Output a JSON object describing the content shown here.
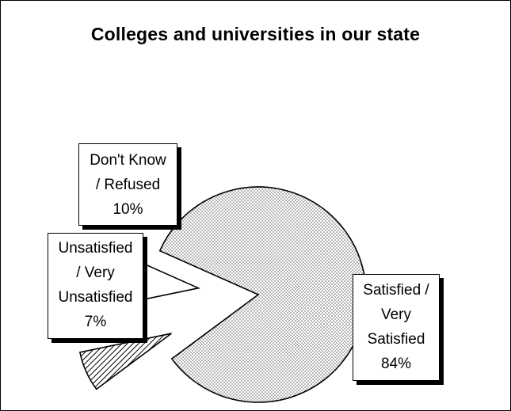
{
  "chart_data": {
    "type": "pie",
    "title": "Colleges and universities in our state",
    "slices": [
      {
        "label": "Satisfied /\nVery\nSatisfied\n84%",
        "value": 84,
        "fill": "dots",
        "exploded": false
      },
      {
        "label": "Unsatisfied\n/ Very\nUnsatisfied\n7%",
        "value": 7,
        "fill": "hatch",
        "exploded": true
      },
      {
        "label": "Don't Know\n/ Refused\n10%",
        "value": 10,
        "fill": "white",
        "exploded": true
      }
    ],
    "legend": "none",
    "colors": {
      "outline": "#000000",
      "background": "#ffffff",
      "dots": "#555555",
      "hatch": "#000000"
    }
  }
}
